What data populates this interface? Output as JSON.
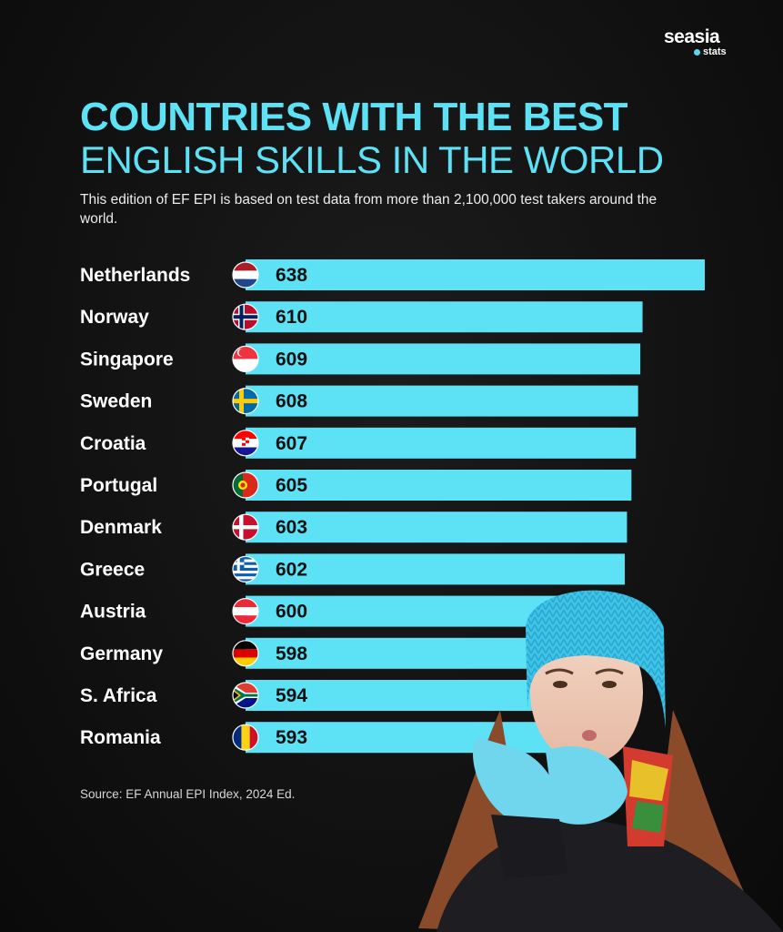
{
  "brand": {
    "name": "seasia",
    "sub": "stats"
  },
  "title_line1": "COUNTRIES WITH THE BEST",
  "title_line2": "ENGLISH SKILLS IN THE WORLD",
  "subtitle": "This edition of EF EPI is based on test data from more than 2,100,000 test takers around the world.",
  "source": "Source: EF Annual EPI Index, 2024 Ed.",
  "colors": {
    "accent": "#5ce1f5",
    "bar": "#5ce1f5"
  },
  "chart_data": {
    "type": "bar",
    "orientation": "horizontal",
    "categories": [
      "Netherlands",
      "Norway",
      "Singapore",
      "Sweden",
      "Croatia",
      "Portugal",
      "Denmark",
      "Greece",
      "Austria",
      "Germany",
      "S. Africa",
      "Romania"
    ],
    "values": [
      638,
      610,
      609,
      608,
      607,
      605,
      603,
      602,
      600,
      598,
      594,
      593
    ],
    "flags": [
      "netherlands-flag-icon",
      "norway-flag-icon",
      "singapore-flag-icon",
      "sweden-flag-icon",
      "croatia-flag-icon",
      "portugal-flag-icon",
      "denmark-flag-icon",
      "greece-flag-icon",
      "austria-flag-icon",
      "germany-flag-icon",
      "south-africa-flag-icon",
      "romania-flag-icon"
    ],
    "data_labels": true,
    "grid": false,
    "legend": "none"
  }
}
